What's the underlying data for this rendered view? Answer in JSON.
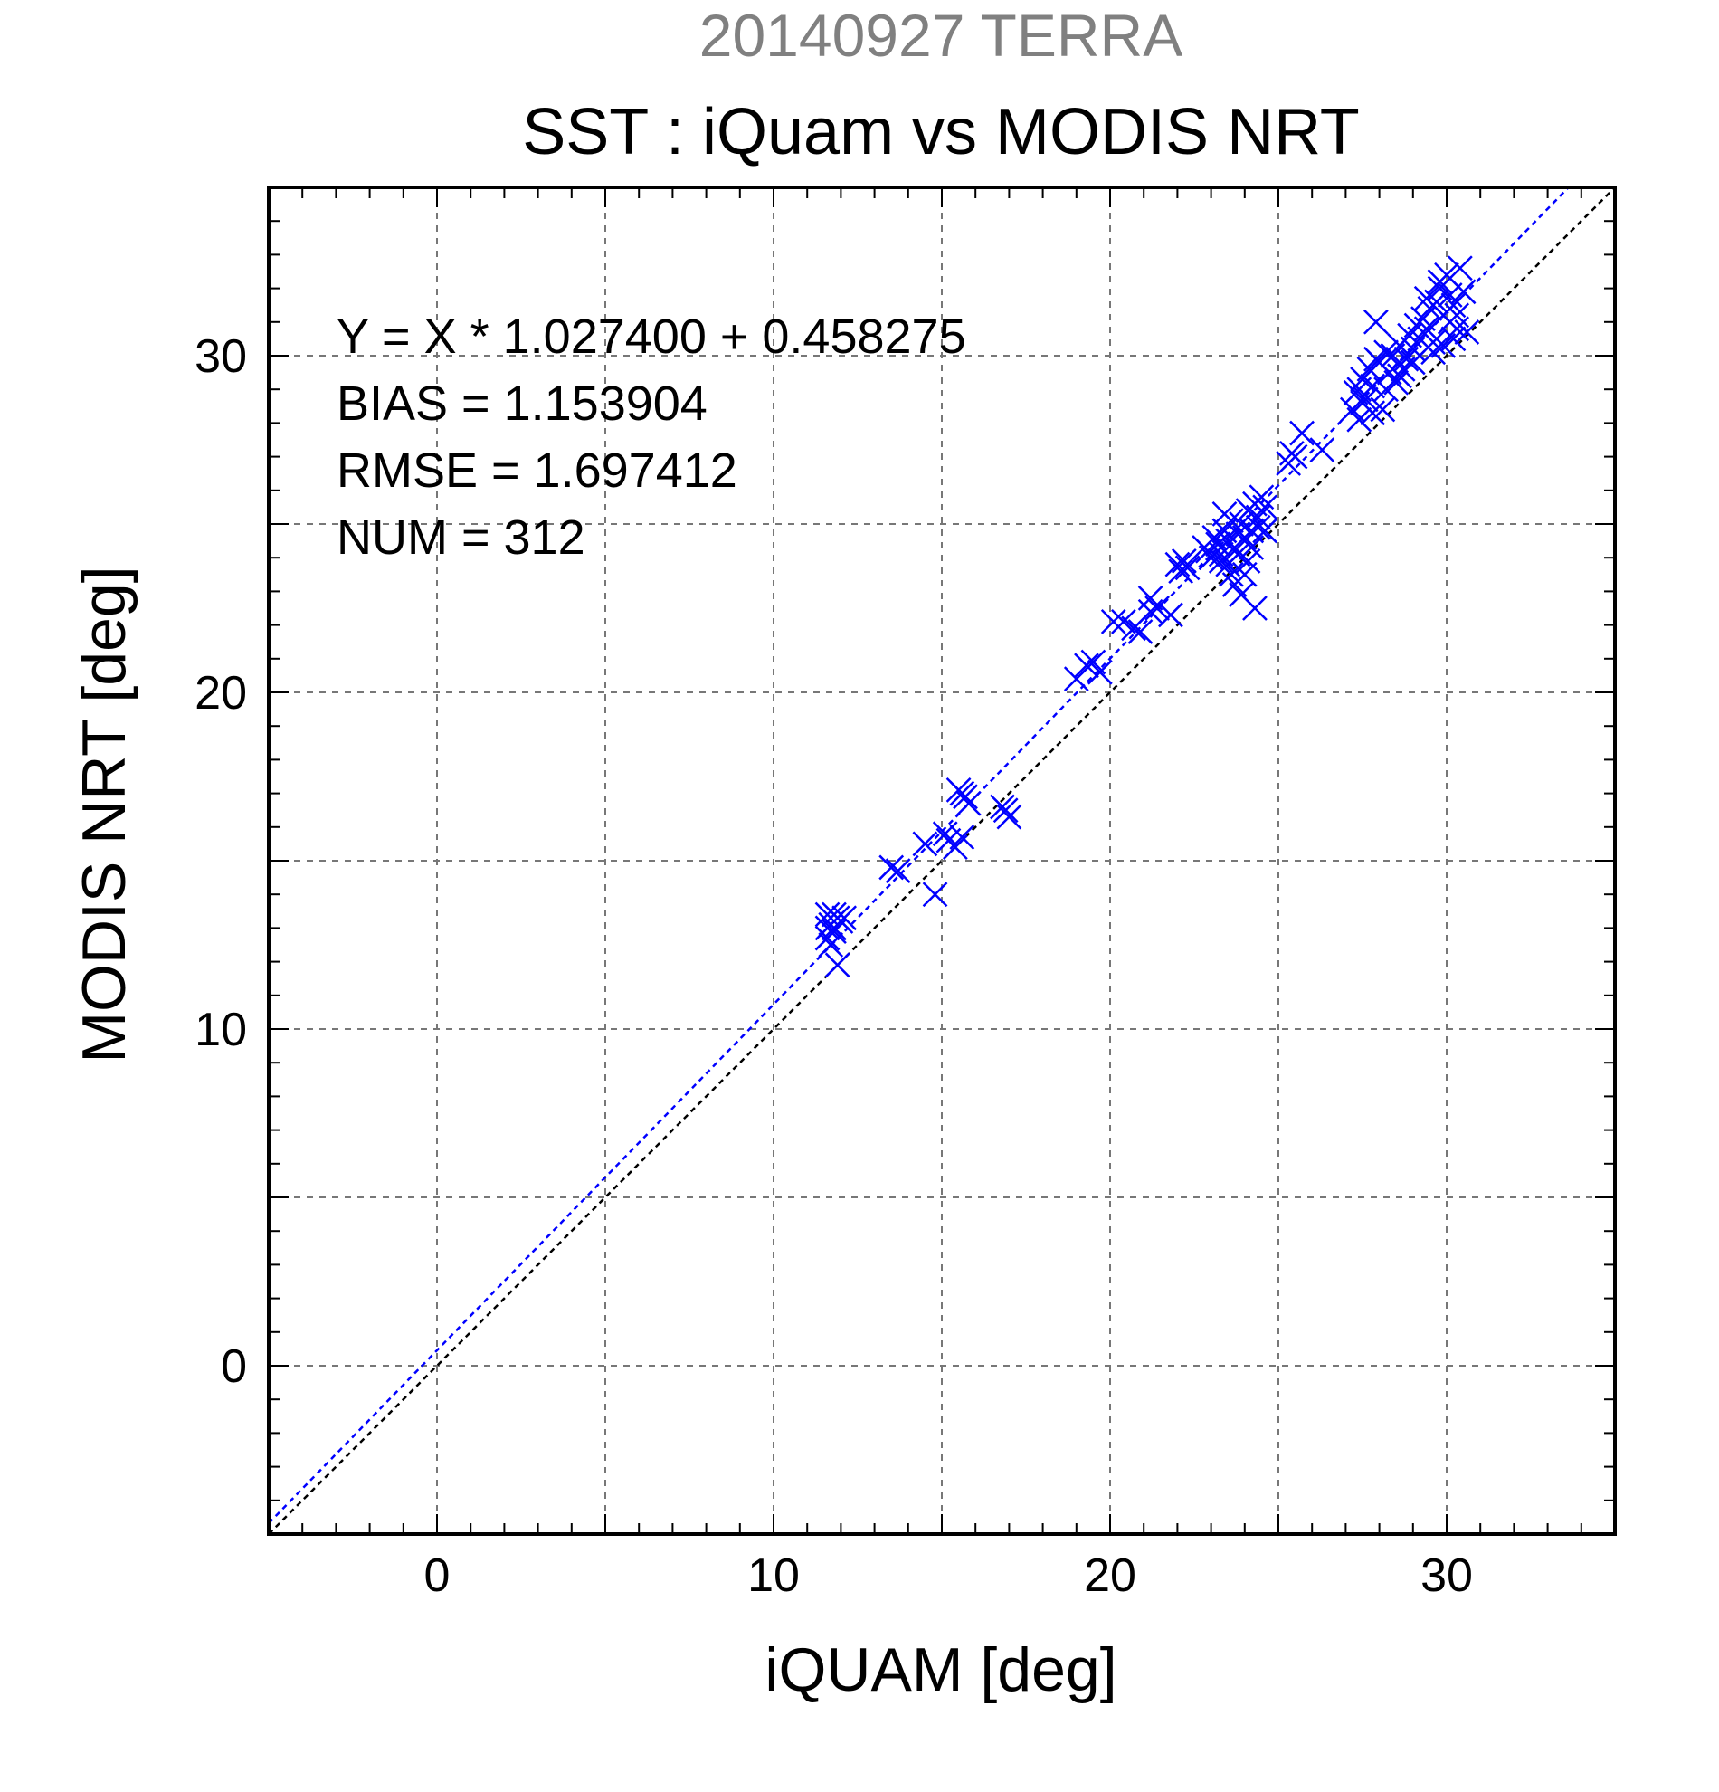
{
  "chart_data": {
    "type": "scatter",
    "supertitle": "20140927 TERRA",
    "title": "SST : iQuam vs MODIS NRT",
    "xlabel": "iQUAM [deg]",
    "ylabel": "MODIS NRT [deg]",
    "xlim": [
      -5,
      35
    ],
    "ylim": [
      -5,
      35
    ],
    "xticks": [
      0,
      10,
      20,
      30
    ],
    "yticks": [
      0,
      10,
      20,
      30
    ],
    "grid_step": 5,
    "minor_tick_step": 1,
    "grid": true,
    "stats": [
      "Y = X * 1.027400 + 0.458275",
      "BIAS = 1.153904",
      "RMSE = 1.697412",
      "NUM = 312"
    ],
    "fit": {
      "slope": 1.0274,
      "intercept": 0.458275,
      "color": "#0000ff"
    },
    "identity_line_color": "#000000",
    "marker": "x",
    "marker_color": "#0000ff",
    "series": [
      {
        "points": [
          [
            11.6,
            13.4
          ],
          [
            11.7,
            13.1
          ],
          [
            11.8,
            12.9
          ],
          [
            11.6,
            12.7
          ],
          [
            11.9,
            13.3
          ],
          [
            12.0,
            13.2
          ],
          [
            11.7,
            12.5
          ],
          [
            11.8,
            13.0
          ],
          [
            12.1,
            13.3
          ],
          [
            11.9,
            11.9
          ],
          [
            11.6,
            13.0
          ],
          [
            11.8,
            13.4
          ],
          [
            13.5,
            14.8
          ],
          [
            13.7,
            14.7
          ],
          [
            14.5,
            15.5
          ],
          [
            14.8,
            14.0
          ],
          [
            15.1,
            15.8
          ],
          [
            15.2,
            15.6
          ],
          [
            15.4,
            15.4
          ],
          [
            15.5,
            17.1
          ],
          [
            15.6,
            17.0
          ],
          [
            15.7,
            16.9
          ],
          [
            15.8,
            16.7
          ],
          [
            15.6,
            15.7
          ],
          [
            16.8,
            16.6
          ],
          [
            17.0,
            16.3
          ],
          [
            16.9,
            16.5
          ],
          [
            19.0,
            20.4
          ],
          [
            19.3,
            20.8
          ],
          [
            19.5,
            20.9
          ],
          [
            19.7,
            20.6
          ],
          [
            20.1,
            22.1
          ],
          [
            20.4,
            22.1
          ],
          [
            20.7,
            21.9
          ],
          [
            20.9,
            21.8
          ],
          [
            21.2,
            22.8
          ],
          [
            21.2,
            22.4
          ],
          [
            21.4,
            22.5
          ],
          [
            21.8,
            22.3
          ],
          [
            22.0,
            23.8
          ],
          [
            22.2,
            23.9
          ],
          [
            22.1,
            23.6
          ],
          [
            22.3,
            23.7
          ],
          [
            22.8,
            24.3
          ],
          [
            22.9,
            24.2
          ],
          [
            23.0,
            24.0
          ],
          [
            23.1,
            24.6
          ],
          [
            23.2,
            24.4
          ],
          [
            23.3,
            24.1
          ],
          [
            23.4,
            24.8
          ],
          [
            23.5,
            24.5
          ],
          [
            23.6,
            25.1
          ],
          [
            23.7,
            24.2
          ],
          [
            23.8,
            24.7
          ],
          [
            23.9,
            25.0
          ],
          [
            24.0,
            24.6
          ],
          [
            24.1,
            25.4
          ],
          [
            24.2,
            24.8
          ],
          [
            24.3,
            25.6
          ],
          [
            24.4,
            25.2
          ],
          [
            24.5,
            25.8
          ],
          [
            24.6,
            25.5
          ],
          [
            23.5,
            23.8
          ],
          [
            23.7,
            23.2
          ],
          [
            24.0,
            23.5
          ],
          [
            24.3,
            22.5
          ],
          [
            23.9,
            22.9
          ],
          [
            23.6,
            23.5
          ],
          [
            24.2,
            24.3
          ],
          [
            23.3,
            23.9
          ],
          [
            24.4,
            24.9
          ],
          [
            23.8,
            24.1
          ],
          [
            24.1,
            23.9
          ],
          [
            23.4,
            25.3
          ],
          [
            24.6,
            24.8
          ],
          [
            25.3,
            26.8
          ],
          [
            25.5,
            27.0
          ],
          [
            25.7,
            27.7
          ],
          [
            25.4,
            27.1
          ],
          [
            26.3,
            27.2
          ],
          [
            27.2,
            28.4
          ],
          [
            27.3,
            28.9
          ],
          [
            27.4,
            28.1
          ],
          [
            27.5,
            29.3
          ],
          [
            27.6,
            28.7
          ],
          [
            27.7,
            29.6
          ],
          [
            27.8,
            29.1
          ],
          [
            27.9,
            31.0
          ],
          [
            28.0,
            29.8
          ],
          [
            28.1,
            28.4
          ],
          [
            28.2,
            30.1
          ],
          [
            28.3,
            29.5
          ],
          [
            28.4,
            30.0
          ],
          [
            28.5,
            29.2
          ],
          [
            28.6,
            30.3
          ],
          [
            28.7,
            29.6
          ],
          [
            28.8,
            29.9
          ],
          [
            28.9,
            30.6
          ],
          [
            29.0,
            30.2
          ],
          [
            29.1,
            30.9
          ],
          [
            29.2,
            30.5
          ],
          [
            29.3,
            31.1
          ],
          [
            29.4,
            30.8
          ],
          [
            29.5,
            31.4
          ],
          [
            29.6,
            30.4
          ],
          [
            29.7,
            31.6
          ],
          [
            29.8,
            32.0
          ],
          [
            29.9,
            31.2
          ],
          [
            30.0,
            32.4
          ],
          [
            30.1,
            31.0
          ],
          [
            30.2,
            31.5
          ],
          [
            30.3,
            30.8
          ],
          [
            30.4,
            32.6
          ],
          [
            30.5,
            31.9
          ],
          [
            30.6,
            30.7
          ],
          [
            29.6,
            30.1
          ],
          [
            29.9,
            30.3
          ],
          [
            30.2,
            30.5
          ],
          [
            29.4,
            31.7
          ],
          [
            29.8,
            32.2
          ],
          [
            30.1,
            31.8
          ],
          [
            30.3,
            31.2
          ],
          [
            27.5,
            28.6
          ],
          [
            27.8,
            28.3
          ],
          [
            28.2,
            29.0
          ],
          [
            28.6,
            29.4
          ],
          [
            29.0,
            29.8
          ],
          [
            27.4,
            29.0
          ],
          [
            27.9,
            29.9
          ]
        ]
      }
    ]
  }
}
